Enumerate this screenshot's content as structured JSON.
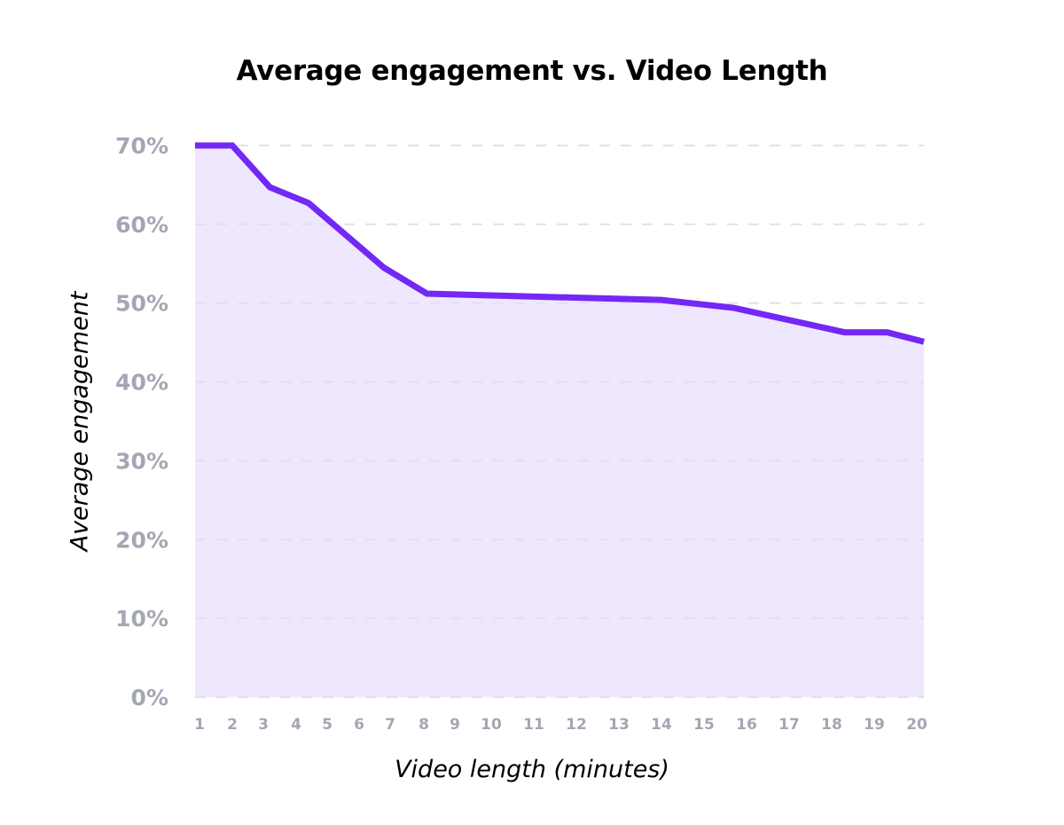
{
  "chart_data": {
    "type": "area",
    "title": "Average engagement vs. Video Length",
    "xlabel": "Video length (minutes)",
    "ylabel": "Average engagement",
    "ylim": [
      0,
      70
    ],
    "yticks": [
      "0%",
      "10%",
      "20%",
      "30%",
      "40%",
      "50%",
      "60%",
      "70%"
    ],
    "categories": [
      "1",
      "2",
      "3",
      "4",
      "5",
      "6",
      "7",
      "8",
      "9",
      "10",
      "11",
      "12",
      "13",
      "14",
      "15",
      "16",
      "17",
      "18",
      "19",
      "20"
    ],
    "grid": true,
    "legend": null,
    "series": [
      {
        "name": "Average engagement",
        "color": "#7328f5",
        "fill": "#efe7fd",
        "points": [
          {
            "x": 1,
            "y": 70.0
          },
          {
            "x": 2,
            "y": 70.0
          },
          {
            "x": 3.2,
            "y": 64.7
          },
          {
            "x": 4.4,
            "y": 62.7
          },
          {
            "x": 6.8,
            "y": 54.5
          },
          {
            "x": 8.1,
            "y": 51.2
          },
          {
            "x": 14.0,
            "y": 50.4
          },
          {
            "x": 15.7,
            "y": 49.4
          },
          {
            "x": 18.3,
            "y": 46.3
          },
          {
            "x": 19.3,
            "y": 46.3
          },
          {
            "x": 20,
            "y": 45.1
          }
        ]
      }
    ]
  },
  "colors": {
    "line": "#7328f5",
    "fill": "#efe7fd",
    "grid": "#e2e0e8",
    "tick": "#a3a7b3"
  }
}
